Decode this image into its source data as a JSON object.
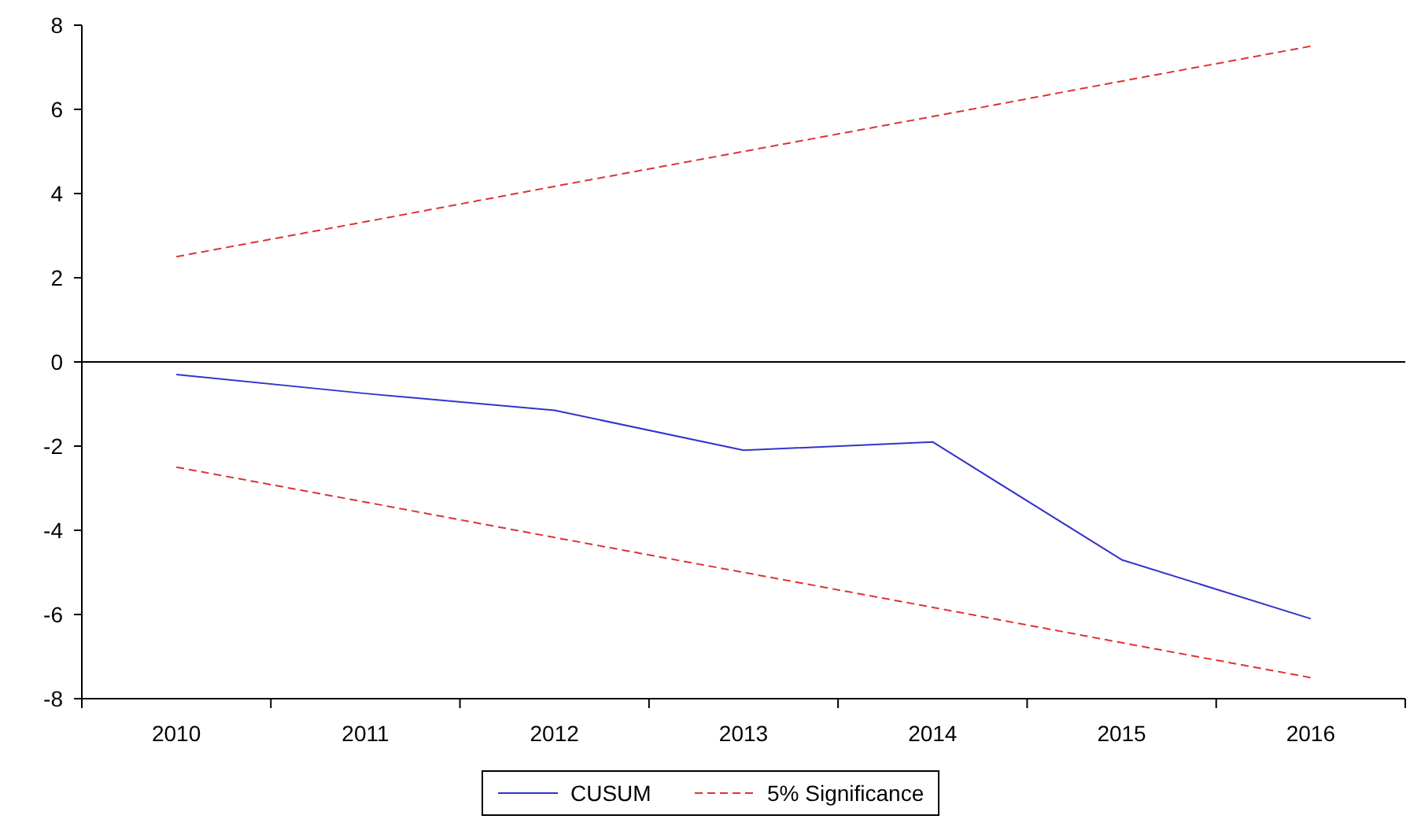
{
  "chart_data": {
    "type": "line",
    "categories": [
      "2010",
      "2011",
      "2012",
      "2013",
      "2014",
      "2015",
      "2016"
    ],
    "series": [
      {
        "name": "CUSUM",
        "color": "#3333cc",
        "values": [
          -0.3,
          -0.75,
          -1.15,
          -2.1,
          -1.9,
          -4.7,
          -6.1
        ],
        "line_style": "solid"
      },
      {
        "name": "5% Significance",
        "color": "#dd3333",
        "values": [
          2.5,
          3.33,
          4.17,
          5.0,
          5.83,
          6.67,
          7.5
        ],
        "line_style": "dashed"
      },
      {
        "color": "#dd3333",
        "values": [
          -2.5,
          -3.33,
          -4.17,
          -5.0,
          -5.83,
          -6.67,
          -7.5
        ],
        "line_style": "dashed"
      }
    ],
    "ylim": [
      -8,
      8
    ],
    "yticks": [
      -8,
      -6,
      -4,
      -2,
      0,
      2,
      4,
      6,
      8
    ],
    "ref_lines": [
      {
        "axis": "y",
        "value": 0,
        "color": "#000000"
      }
    ],
    "grid": false,
    "legend": "bottom",
    "marker": "none"
  }
}
